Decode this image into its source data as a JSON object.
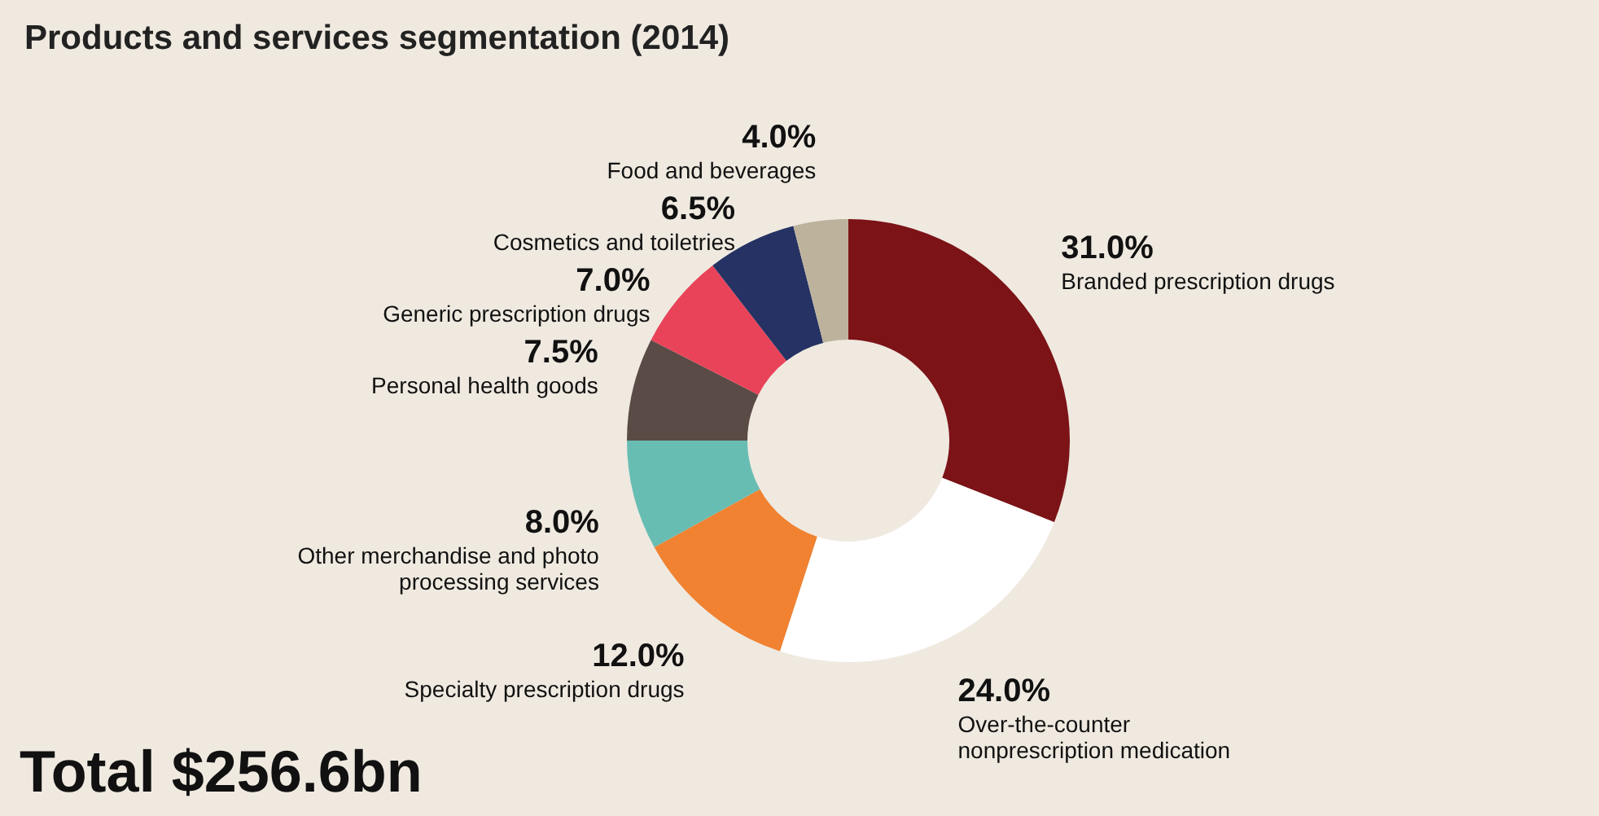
{
  "chart_data": {
    "type": "donut",
    "title": "Products and services segmentation (2014)",
    "categories": [
      "Branded prescription drugs",
      "Over-the-counter nonprescription medication",
      "Specialty prescription drugs",
      "Other merchandise and photo processing services",
      "Personal health goods",
      "Generic prescription drugs",
      "Cosmetics and toiletries",
      "Food and beverages"
    ],
    "values": [
      31.0,
      24.0,
      12.0,
      8.0,
      7.5,
      7.0,
      6.5,
      4.0
    ],
    "colors": [
      "#7b1317",
      "#ffffff",
      "#f08232",
      "#68bdb3",
      "#5b4b47",
      "#e9435a",
      "#253263",
      "#bdb39d"
    ],
    "value_labels": [
      "31.0%",
      "24.0%",
      "12.0%",
      "8.0%",
      "7.5%",
      "7.0%",
      "6.5%",
      "4.0%"
    ],
    "annotations": [
      "Total $256.6bn"
    ]
  }
}
